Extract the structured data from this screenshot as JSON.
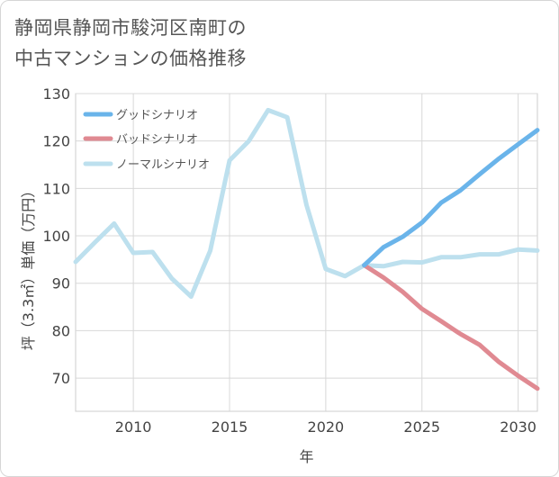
{
  "title_line1": "静岡県静岡市駿河区南町の",
  "title_line2": "中古マンションの価格推移",
  "chart_data": {
    "type": "line",
    "title": "静岡県静岡市駿河区南町の中古マンションの価格推移",
    "xlabel": "年",
    "ylabel": "坪（3.3㎡）単価（万円）",
    "xlim": [
      2007,
      2031
    ],
    "ylim": [
      63,
      130
    ],
    "x_ticks": [
      2010,
      2015,
      2020,
      2025,
      2030
    ],
    "y_ticks": [
      70,
      80,
      90,
      100,
      110,
      120,
      130
    ],
    "legend_position": "top-left",
    "series": [
      {
        "name": "グッドシナリオ",
        "color": "#6ab4ea",
        "x": [
          2022,
          2023,
          2024,
          2025,
          2026,
          2027,
          2028,
          2029,
          2030,
          2031
        ],
        "values": [
          93.8,
          97.6,
          99.8,
          102.8,
          107.0,
          109.6,
          113.0,
          116.3,
          119.3,
          122.3
        ]
      },
      {
        "name": "バッドシナリオ",
        "color": "#e08a92",
        "x": [
          2022,
          2023,
          2024,
          2025,
          2026,
          2027,
          2028,
          2029,
          2030,
          2031
        ],
        "values": [
          93.8,
          91.2,
          88.2,
          84.6,
          82.0,
          79.3,
          77.0,
          73.4,
          70.5,
          67.8
        ]
      },
      {
        "name": "ノーマルシナリオ",
        "color": "#bde0ee",
        "x": [
          2007,
          2008,
          2009,
          2010,
          2011,
          2012,
          2013,
          2014,
          2015,
          2016,
          2017,
          2018,
          2019,
          2020,
          2021,
          2022,
          2023,
          2024,
          2025,
          2026,
          2027,
          2028,
          2029,
          2030,
          2031
        ],
        "values": [
          94.5,
          98.6,
          102.6,
          96.4,
          96.6,
          91.0,
          87.2,
          96.9,
          115.9,
          120.0,
          126.5,
          125.0,
          106.5,
          93.0,
          91.5,
          93.8,
          93.6,
          94.5,
          94.4,
          95.5,
          95.5,
          96.1,
          96.1,
          97.1,
          96.9
        ]
      }
    ]
  }
}
